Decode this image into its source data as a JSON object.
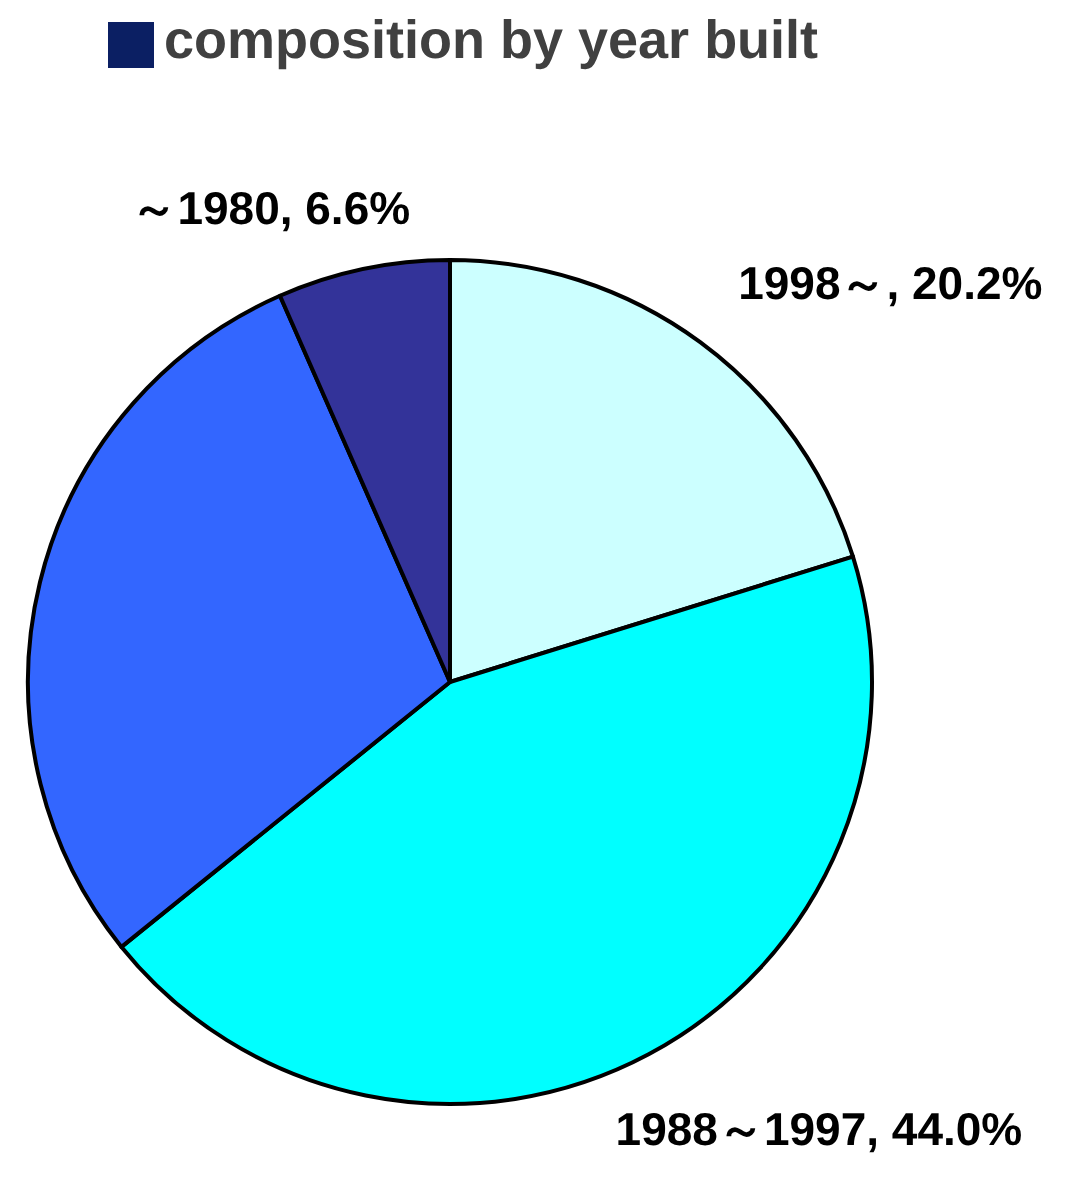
{
  "chart_data": {
    "type": "pie",
    "title": "composition by year built",
    "categories": [
      "1998～",
      "1988～1997",
      null,
      "～1980"
    ],
    "values": [
      20.2,
      44.0,
      29.2,
      6.6
    ],
    "colors": [
      "#ccffff",
      "#00ffff",
      "#3366ff",
      "#333399"
    ],
    "value_labels": [
      "20.2%",
      "44.0%",
      null,
      "6.6%"
    ]
  }
}
